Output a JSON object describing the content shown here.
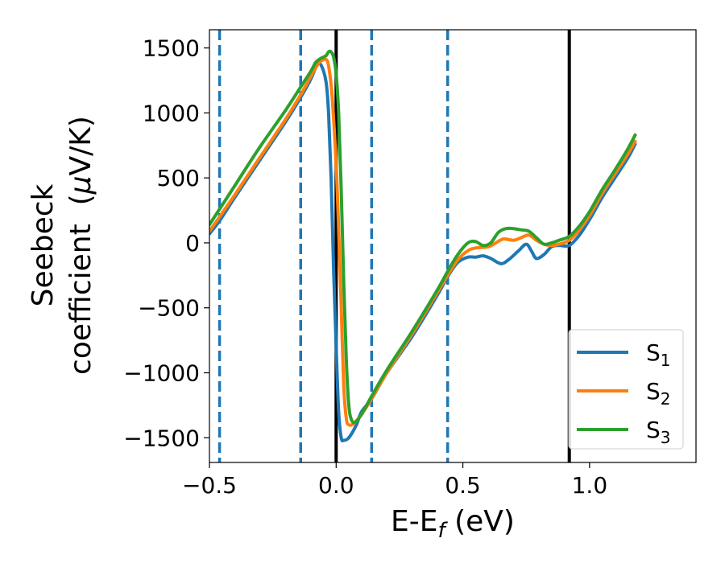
{
  "chart_data": {
    "type": "line",
    "title": "",
    "xlabel": "E-E",
    "xlabel_sub": "f",
    "xlabel_unit": " (eV)",
    "ylabel_line1": "Seebeck",
    "ylabel_line2_pre": "coefficient  (",
    "ylabel_mu": "μ",
    "ylabel_line2_post": "V/K)",
    "xlim": [
      -0.5,
      1.42
    ],
    "ylim": [
      -1690,
      1640
    ],
    "xticks": [
      -0.5,
      0.0,
      0.5,
      1.0
    ],
    "xtick_labels": [
      "−0.5",
      "0.0",
      "0.5",
      "1.0"
    ],
    "yticks": [
      -1500,
      -1000,
      -500,
      0,
      500,
      1000,
      1500
    ],
    "ytick_labels": [
      "−1500",
      "−1000",
      "−500",
      "0",
      "500",
      "1000",
      "1500"
    ],
    "grid": false,
    "legend_position": "bottom-right",
    "vlines_dashed": [
      -0.46,
      -0.14,
      0.14,
      0.44
    ],
    "vlines_solid": [
      0.0,
      0.92
    ],
    "dashed_color": "#1f77b4",
    "solid_color": "#000000",
    "series": [
      {
        "name": "S",
        "sub": "1",
        "color": "#1f77b4",
        "points": [
          [
            -0.5,
            70
          ],
          [
            -0.46,
            170
          ],
          [
            -0.4,
            350
          ],
          [
            -0.3,
            640
          ],
          [
            -0.2,
            930
          ],
          [
            -0.14,
            1120
          ],
          [
            -0.1,
            1260
          ],
          [
            -0.075,
            1370
          ],
          [
            -0.06,
            1370
          ],
          [
            -0.04,
            1240
          ],
          [
            -0.03,
            1000
          ],
          [
            -0.02,
            500
          ],
          [
            -0.01,
            -200
          ],
          [
            0.0,
            -800
          ],
          [
            0.01,
            -1300
          ],
          [
            0.02,
            -1500
          ],
          [
            0.03,
            -1520
          ],
          [
            0.05,
            -1500
          ],
          [
            0.08,
            -1400
          ],
          [
            0.1,
            -1300
          ],
          [
            0.14,
            -1200
          ],
          [
            0.2,
            -1000
          ],
          [
            0.3,
            -720
          ],
          [
            0.4,
            -400
          ],
          [
            0.44,
            -260
          ],
          [
            0.48,
            -150
          ],
          [
            0.52,
            -110
          ],
          [
            0.55,
            -110
          ],
          [
            0.58,
            -100
          ],
          [
            0.61,
            -120
          ],
          [
            0.65,
            -160
          ],
          [
            0.68,
            -130
          ],
          [
            0.72,
            -60
          ],
          [
            0.75,
            -10
          ],
          [
            0.77,
            -60
          ],
          [
            0.79,
            -120
          ],
          [
            0.82,
            -90
          ],
          [
            0.85,
            -30
          ],
          [
            0.88,
            -20
          ],
          [
            0.92,
            -20
          ],
          [
            0.96,
            60
          ],
          [
            1.0,
            180
          ],
          [
            1.05,
            350
          ],
          [
            1.1,
            500
          ],
          [
            1.15,
            650
          ],
          [
            1.18,
            760
          ]
        ]
      },
      {
        "name": "S",
        "sub": "2",
        "color": "#ff7f0e",
        "points": [
          [
            -0.5,
            90
          ],
          [
            -0.46,
            200
          ],
          [
            -0.4,
            370
          ],
          [
            -0.3,
            660
          ],
          [
            -0.2,
            950
          ],
          [
            -0.14,
            1140
          ],
          [
            -0.1,
            1280
          ],
          [
            -0.07,
            1380
          ],
          [
            -0.05,
            1410
          ],
          [
            -0.035,
            1400
          ],
          [
            -0.025,
            1300
          ],
          [
            -0.015,
            1100
          ],
          [
            0.0,
            600
          ],
          [
            0.01,
            100
          ],
          [
            0.02,
            -500
          ],
          [
            0.03,
            -1100
          ],
          [
            0.04,
            -1350
          ],
          [
            0.05,
            -1400
          ],
          [
            0.07,
            -1390
          ],
          [
            0.1,
            -1320
          ],
          [
            0.14,
            -1200
          ],
          [
            0.2,
            -1000
          ],
          [
            0.3,
            -700
          ],
          [
            0.4,
            -380
          ],
          [
            0.44,
            -250
          ],
          [
            0.48,
            -130
          ],
          [
            0.52,
            -60
          ],
          [
            0.55,
            -40
          ],
          [
            0.6,
            -30
          ],
          [
            0.63,
            0
          ],
          [
            0.66,
            30
          ],
          [
            0.7,
            20
          ],
          [
            0.73,
            40
          ],
          [
            0.76,
            60
          ],
          [
            0.79,
            20
          ],
          [
            0.82,
            -10
          ],
          [
            0.85,
            -20
          ],
          [
            0.88,
            -10
          ],
          [
            0.92,
            20
          ],
          [
            0.96,
            100
          ],
          [
            1.0,
            210
          ],
          [
            1.05,
            380
          ],
          [
            1.1,
            530
          ],
          [
            1.15,
            680
          ],
          [
            1.18,
            780
          ]
        ]
      },
      {
        "name": "S",
        "sub": "3",
        "color": "#2ca02c",
        "points": [
          [
            -0.5,
            140
          ],
          [
            -0.46,
            260
          ],
          [
            -0.4,
            440
          ],
          [
            -0.3,
            740
          ],
          [
            -0.2,
            1020
          ],
          [
            -0.14,
            1200
          ],
          [
            -0.1,
            1320
          ],
          [
            -0.08,
            1390
          ],
          [
            -0.06,
            1420
          ],
          [
            -0.04,
            1440
          ],
          [
            -0.03,
            1470
          ],
          [
            -0.02,
            1470
          ],
          [
            -0.01,
            1430
          ],
          [
            0.0,
            1300
          ],
          [
            0.01,
            1000
          ],
          [
            0.02,
            400
          ],
          [
            0.03,
            -300
          ],
          [
            0.04,
            -900
          ],
          [
            0.05,
            -1250
          ],
          [
            0.06,
            -1360
          ],
          [
            0.075,
            -1380
          ],
          [
            0.1,
            -1320
          ],
          [
            0.14,
            -1180
          ],
          [
            0.2,
            -980
          ],
          [
            0.3,
            -680
          ],
          [
            0.4,
            -360
          ],
          [
            0.44,
            -220
          ],
          [
            0.48,
            -90
          ],
          [
            0.52,
            0
          ],
          [
            0.55,
            10
          ],
          [
            0.58,
            -20
          ],
          [
            0.61,
            0
          ],
          [
            0.64,
            80
          ],
          [
            0.67,
            110
          ],
          [
            0.7,
            110
          ],
          [
            0.73,
            100
          ],
          [
            0.76,
            90
          ],
          [
            0.79,
            40
          ],
          [
            0.82,
            -10
          ],
          [
            0.85,
            0
          ],
          [
            0.88,
            20
          ],
          [
            0.92,
            50
          ],
          [
            0.96,
            130
          ],
          [
            1.0,
            240
          ],
          [
            1.05,
            410
          ],
          [
            1.1,
            560
          ],
          [
            1.15,
            720
          ],
          [
            1.18,
            830
          ]
        ]
      }
    ]
  }
}
